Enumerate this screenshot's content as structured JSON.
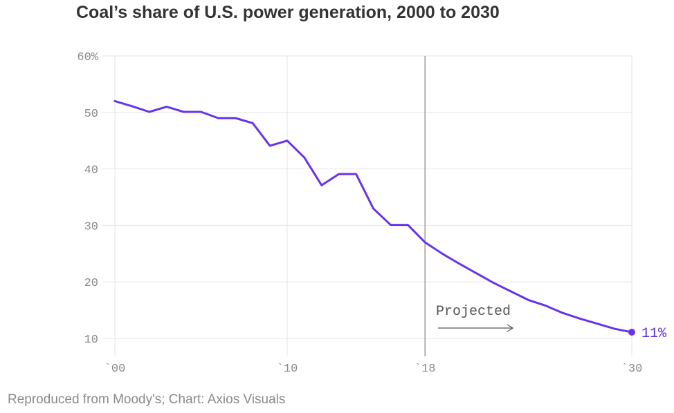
{
  "title": "Coal’s share of U.S. power generation, 2000 to 2030",
  "footer": "Reproduced from Moody's; Chart: Axios Visuals",
  "colors": {
    "line": "#6633ee",
    "grid": "#e6e6e6",
    "divider": "#9a9a9a",
    "tick_text": "#8a8a8a"
  },
  "chart_data": {
    "type": "line",
    "title": "Coal’s share of U.S. power generation, 2000 to 2030",
    "xlabel": "",
    "ylabel": "",
    "xlim": [
      2000,
      2030
    ],
    "ylim": [
      8,
      60
    ],
    "y_ticks": [
      {
        "value": 60,
        "label": "60%"
      },
      {
        "value": 50,
        "label": "50"
      },
      {
        "value": 40,
        "label": "40"
      },
      {
        "value": 30,
        "label": "30"
      },
      {
        "value": 20,
        "label": "20"
      },
      {
        "value": 10,
        "label": "10"
      }
    ],
    "x_ticks": [
      {
        "value": 2000,
        "label": "`00"
      },
      {
        "value": 2010,
        "label": "`10"
      },
      {
        "value": 2018,
        "label": "`18"
      },
      {
        "value": 2030,
        "label": "`30"
      }
    ],
    "grid": true,
    "projection_start": 2018,
    "annotation": "Projected",
    "end_label": "11%",
    "series": [
      {
        "x": [
          2000,
          2001,
          2002,
          2003,
          2004,
          2005,
          2006,
          2007,
          2008,
          2009,
          2010,
          2011,
          2012,
          2013,
          2014,
          2015,
          2016,
          2017,
          2018,
          2019,
          2020,
          2021,
          2022,
          2023,
          2024,
          2025,
          2026,
          2027,
          2028,
          2029,
          2030
        ],
        "y": [
          52,
          51.1,
          50.1,
          51,
          50.1,
          50.1,
          49,
          49,
          48.1,
          44.1,
          45,
          42,
          37.1,
          39.1,
          39.1,
          33,
          30.1,
          30.1,
          27,
          25,
          23.2,
          21.5,
          19.8,
          18.3,
          16.8,
          15.8,
          14.5,
          13.5,
          12.6,
          11.7,
          11.1
        ]
      }
    ]
  }
}
